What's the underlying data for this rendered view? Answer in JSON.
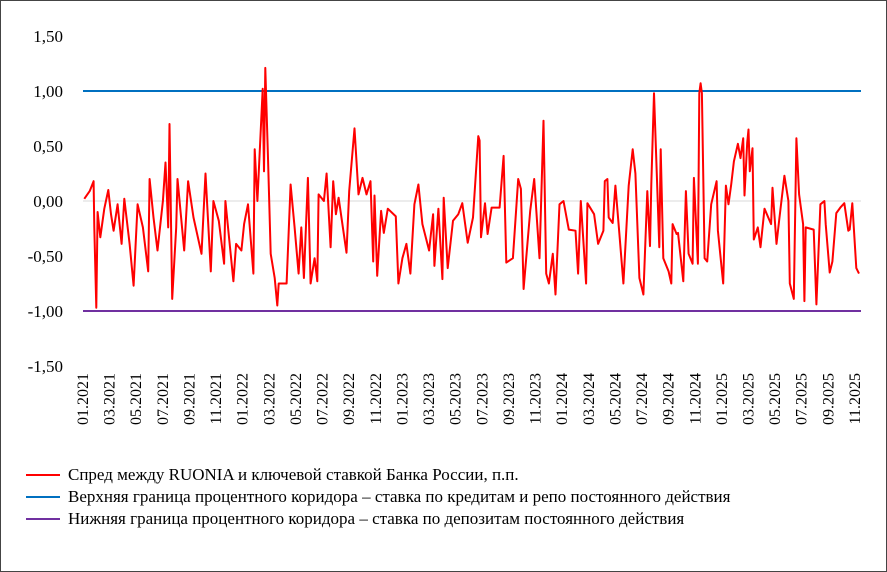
{
  "chart_data": {
    "type": "line",
    "title": "",
    "xlabel": "",
    "ylabel": "",
    "x_unit": "months since 01.2021",
    "ylim": [
      -1.5,
      1.5
    ],
    "xlim": [
      0,
      58.5
    ],
    "grid": "zero line only",
    "legend_placement": "bottom",
    "y_ticks": [
      {
        "value": 1.5,
        "label": "1,50"
      },
      {
        "value": 1.0,
        "label": "1,00"
      },
      {
        "value": 0.5,
        "label": "0,50"
      },
      {
        "value": 0.0,
        "label": "0,00"
      },
      {
        "value": -0.5,
        "label": "-0,50"
      },
      {
        "value": -1.0,
        "label": "-1,00"
      },
      {
        "value": -1.5,
        "label": "-1,50"
      }
    ],
    "x_ticks": [
      "01.2021",
      "03.2021",
      "05.2021",
      "07.2021",
      "09.2021",
      "11.2021",
      "01.2022",
      "03.2022",
      "05.2022",
      "07.2022",
      "09.2022",
      "11.2022",
      "01.2023",
      "03.2023",
      "05.2023",
      "07.2023",
      "09.2023",
      "11.2023",
      "01.2024",
      "03.2024",
      "05.2024",
      "07.2024",
      "09.2024",
      "11.2024",
      "01.2025",
      "03.2025",
      "05.2025",
      "07.2025",
      "09.2025",
      "11.2025"
    ],
    "series": [
      {
        "name": "Спред между RUONIA и ключевой ставкой Банка России, п.п.",
        "color": "#ff0000",
        "points": [
          [
            0.1,
            0.02
          ],
          [
            0.5,
            0.09
          ],
          [
            0.8,
            0.18
          ],
          [
            0.85,
            -0.24
          ],
          [
            1.0,
            -0.97
          ],
          [
            1.1,
            -0.1
          ],
          [
            1.3,
            -0.33
          ],
          [
            1.6,
            -0.07
          ],
          [
            1.9,
            0.1
          ],
          [
            2.1,
            -0.12
          ],
          [
            2.3,
            -0.27
          ],
          [
            2.6,
            -0.03
          ],
          [
            2.9,
            -0.39
          ],
          [
            3.1,
            0.02
          ],
          [
            3.5,
            -0.39
          ],
          [
            3.8,
            -0.77
          ],
          [
            4.1,
            -0.03
          ],
          [
            4.5,
            -0.24
          ],
          [
            4.9,
            -0.64
          ],
          [
            5.0,
            0.2
          ],
          [
            5.3,
            -0.15
          ],
          [
            5.6,
            -0.45
          ],
          [
            6.0,
            0
          ],
          [
            6.2,
            0.35
          ],
          [
            6.4,
            -0.24
          ],
          [
            6.5,
            0.7
          ],
          [
            6.7,
            -0.89
          ],
          [
            7.0,
            -0.24
          ],
          [
            7.1,
            0.2
          ],
          [
            7.6,
            -0.45
          ],
          [
            7.9,
            0.18
          ],
          [
            8.3,
            -0.15
          ],
          [
            8.9,
            -0.48
          ],
          [
            9.2,
            0.25
          ],
          [
            9.6,
            -0.64
          ],
          [
            9.8,
            0
          ],
          [
            10.2,
            -0.18
          ],
          [
            10.6,
            -0.57
          ],
          [
            10.7,
            0
          ],
          [
            11.3,
            -0.73
          ],
          [
            11.5,
            -0.39
          ],
          [
            11.9,
            -0.45
          ],
          [
            12.1,
            -0.21
          ],
          [
            12.4,
            -0.03
          ],
          [
            12.8,
            -0.66
          ],
          [
            12.9,
            0.47
          ],
          [
            13.1,
            0
          ],
          [
            13.3,
            0.5
          ],
          [
            13.5,
            1.02
          ],
          [
            13.6,
            0.27
          ],
          [
            13.7,
            1.21
          ],
          [
            13.9,
            0.39
          ],
          [
            14.1,
            -0.48
          ],
          [
            14.4,
            -0.7
          ],
          [
            14.6,
            -0.95
          ],
          [
            14.7,
            -0.75
          ],
          [
            15.3,
            -0.75
          ],
          [
            15.6,
            0.15
          ],
          [
            15.9,
            -0.24
          ],
          [
            16.2,
            -0.66
          ],
          [
            16.4,
            -0.24
          ],
          [
            16.6,
            -0.7
          ],
          [
            16.9,
            0.21
          ],
          [
            17.1,
            -0.75
          ],
          [
            17.4,
            -0.52
          ],
          [
            17.6,
            -0.73
          ],
          [
            17.7,
            0.06
          ],
          [
            18.1,
            0
          ],
          [
            18.3,
            0.25
          ],
          [
            18.6,
            -0.42
          ],
          [
            18.8,
            0.18
          ],
          [
            19.0,
            -0.12
          ],
          [
            19.2,
            0.03
          ],
          [
            19.8,
            -0.47
          ],
          [
            20.0,
            0.09
          ],
          [
            20.4,
            0.66
          ],
          [
            20.7,
            0.06
          ],
          [
            21.0,
            0.21
          ],
          [
            21.3,
            0.06
          ],
          [
            21.6,
            0.18
          ],
          [
            21.8,
            -0.55
          ],
          [
            21.9,
            0.05
          ],
          [
            22.1,
            -0.68
          ],
          [
            22.4,
            -0.09
          ],
          [
            22.6,
            -0.29
          ],
          [
            22.9,
            -0.07
          ],
          [
            23.5,
            -0.14
          ],
          [
            23.7,
            -0.75
          ],
          [
            24.0,
            -0.52
          ],
          [
            24.3,
            -0.39
          ],
          [
            24.6,
            -0.66
          ],
          [
            24.9,
            -0.03
          ],
          [
            25.2,
            0.15
          ],
          [
            25.5,
            -0.21
          ],
          [
            26.0,
            -0.45
          ],
          [
            26.3,
            -0.12
          ],
          [
            26.4,
            -0.59
          ],
          [
            26.7,
            -0.07
          ],
          [
            27.0,
            -0.71
          ],
          [
            27.1,
            0.03
          ],
          [
            27.4,
            -0.61
          ],
          [
            27.8,
            -0.18
          ],
          [
            28.2,
            -0.12
          ],
          [
            28.5,
            -0.02
          ],
          [
            28.9,
            -0.38
          ],
          [
            29.3,
            -0.15
          ],
          [
            29.7,
            0.59
          ],
          [
            29.8,
            0.55
          ],
          [
            29.9,
            -0.33
          ],
          [
            30.2,
            -0.02
          ],
          [
            30.4,
            -0.3
          ],
          [
            30.7,
            -0.06
          ],
          [
            31.3,
            -0.06
          ],
          [
            31.6,
            0.41
          ],
          [
            31.8,
            -0.56
          ],
          [
            32.3,
            -0.52
          ],
          [
            32.7,
            0.2
          ],
          [
            32.9,
            0.11
          ],
          [
            33.1,
            -0.8
          ],
          [
            33.6,
            -0.09
          ],
          [
            33.9,
            0.2
          ],
          [
            34.3,
            -0.52
          ],
          [
            34.6,
            0.73
          ],
          [
            34.8,
            -0.66
          ],
          [
            35.0,
            -0.75
          ],
          [
            35.3,
            -0.48
          ],
          [
            35.5,
            -0.85
          ],
          [
            35.8,
            -0.03
          ],
          [
            36.1,
            0
          ],
          [
            36.5,
            -0.26
          ],
          [
            37.0,
            -0.27
          ],
          [
            37.2,
            -0.66
          ],
          [
            37.4,
            0
          ],
          [
            37.8,
            -0.75
          ],
          [
            37.9,
            -0.02
          ],
          [
            38.4,
            -0.12
          ],
          [
            38.7,
            -0.39
          ],
          [
            39.1,
            -0.27
          ],
          [
            39.2,
            0.18
          ],
          [
            39.4,
            0.2
          ],
          [
            39.5,
            -0.15
          ],
          [
            39.8,
            -0.2
          ],
          [
            40.0,
            0.14
          ],
          [
            40.3,
            -0.3
          ],
          [
            40.6,
            -0.75
          ],
          [
            41.0,
            0.14
          ],
          [
            41.3,
            0.47
          ],
          [
            41.5,
            0.25
          ],
          [
            41.8,
            -0.7
          ],
          [
            42.1,
            -0.85
          ],
          [
            42.4,
            0.09
          ],
          [
            42.6,
            -0.41
          ],
          [
            42.7,
            0.15
          ],
          [
            42.9,
            0.98
          ],
          [
            43.1,
            0.27
          ],
          [
            43.3,
            -0.42
          ],
          [
            43.4,
            0.47
          ],
          [
            43.6,
            -0.52
          ],
          [
            44.0,
            -0.64
          ],
          [
            44.2,
            -0.75
          ],
          [
            44.3,
            -0.21
          ],
          [
            44.6,
            -0.3
          ],
          [
            44.7,
            -0.29
          ],
          [
            45.1,
            -0.73
          ],
          [
            45.3,
            0.09
          ],
          [
            45.5,
            -0.48
          ],
          [
            45.8,
            -0.57
          ],
          [
            45.9,
            0.21
          ],
          [
            46.2,
            -0.57
          ],
          [
            46.3,
            0.98
          ],
          [
            46.4,
            1.07
          ],
          [
            46.5,
            0.98
          ],
          [
            46.7,
            -0.52
          ],
          [
            46.9,
            -0.55
          ],
          [
            47.2,
            -0.03
          ],
          [
            47.6,
            0.18
          ],
          [
            47.7,
            -0.27
          ],
          [
            48.1,
            -0.75
          ],
          [
            48.3,
            0.14
          ],
          [
            48.5,
            -0.03
          ],
          [
            48.7,
            0.15
          ],
          [
            48.9,
            0.36
          ],
          [
            49.2,
            0.52
          ],
          [
            49.4,
            0.39
          ],
          [
            49.6,
            0.57
          ],
          [
            49.7,
            0.05
          ],
          [
            49.9,
            0.53
          ],
          [
            50.0,
            0.65
          ],
          [
            50.1,
            0.27
          ],
          [
            50.3,
            0.48
          ],
          [
            50.4,
            -0.35
          ],
          [
            50.7,
            -0.24
          ],
          [
            50.9,
            -0.42
          ],
          [
            51.2,
            -0.07
          ],
          [
            51.7,
            -0.21
          ],
          [
            51.8,
            0.12
          ],
          [
            52.1,
            -0.39
          ],
          [
            52.3,
            -0.18
          ],
          [
            52.7,
            0.23
          ],
          [
            53.0,
            0
          ],
          [
            53.1,
            -0.75
          ],
          [
            53.4,
            -0.89
          ],
          [
            53.6,
            0.57
          ],
          [
            53.8,
            0.06
          ],
          [
            54.1,
            -0.21
          ],
          [
            54.2,
            -0.91
          ],
          [
            54.3,
            -0.24
          ],
          [
            54.9,
            -0.26
          ],
          [
            55.1,
            -0.94
          ],
          [
            55.4,
            -0.03
          ],
          [
            55.7,
            0
          ],
          [
            55.8,
            -0.21
          ],
          [
            56.1,
            -0.65
          ],
          [
            56.3,
            -0.55
          ],
          [
            56.6,
            -0.11
          ],
          [
            56.9,
            -0.06
          ],
          [
            57.2,
            -0.02
          ],
          [
            57.5,
            -0.27
          ],
          [
            57.6,
            -0.26
          ],
          [
            57.8,
            -0.02
          ],
          [
            58.1,
            -0.61
          ],
          [
            58.3,
            -0.66
          ]
        ]
      },
      {
        "name": "Верхняя граница процентного коридора – ставка по кредитам и репо постоянного действия",
        "color": "#0070c0",
        "constant": 1.0
      },
      {
        "name": "Нижняя граница процентного коридора – ставка по депозитам постоянного действия",
        "color": "#7030a0",
        "constant": -1.0
      }
    ]
  }
}
